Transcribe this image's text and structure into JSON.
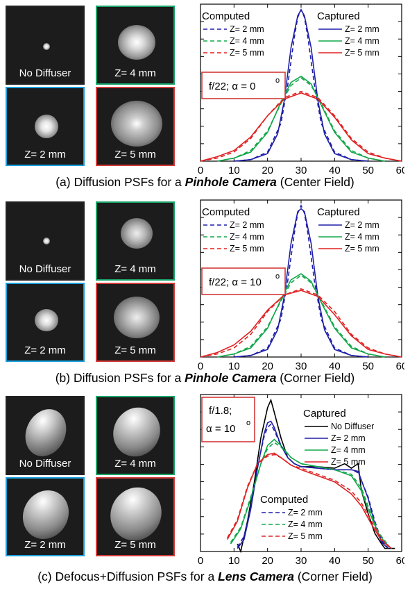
{
  "panels": [
    {
      "id": "a",
      "thumbs": [
        {
          "label": "No Diffuser",
          "color": "none",
          "spot": "tiny"
        },
        {
          "label": "Z= 4 mm",
          "color": "green",
          "spot": "medium"
        },
        {
          "label": "Z= 2 mm",
          "color": "blue",
          "spot": "small"
        },
        {
          "label": "Z= 5 mm",
          "color": "red",
          "spot": "large"
        }
      ],
      "caption": {
        "prefix": "(a) Diffusion PSFs for a ",
        "emph": "Pinhole Camera",
        "suffix": " (Center Field)"
      },
      "annotation": "f/22; α = 0",
      "annotation_sup": "o",
      "legend": {
        "computed_title": "Computed",
        "captured_title": "Captured",
        "computed": [
          "Z= 2 mm",
          "Z= 4 mm",
          "Z= 5 mm"
        ],
        "captured": [
          "Z= 2 mm",
          "Z= 4 mm",
          "Z= 5 mm"
        ]
      }
    },
    {
      "id": "b",
      "thumbs": [
        {
          "label": "No Diffuser",
          "color": "none",
          "spot": "tiny"
        },
        {
          "label": "Z= 4 mm",
          "color": "green",
          "spot": "medium"
        },
        {
          "label": "Z= 2 mm",
          "color": "blue",
          "spot": "small"
        },
        {
          "label": "Z= 5 mm",
          "color": "red",
          "spot": "large"
        }
      ],
      "caption": {
        "prefix": "(b) Diffusion PSFs for a ",
        "emph": "Pinhole Camera",
        "suffix": " (Corner Field)"
      },
      "annotation": "f/22; α = 10",
      "annotation_sup": "o",
      "legend": {
        "computed_title": "Computed",
        "captured_title": "Captured",
        "computed": [
          "Z= 2 mm",
          "Z= 4 mm",
          "Z= 5 mm"
        ],
        "captured": [
          "Z= 2 mm",
          "Z= 4 mm",
          "Z= 5 mm"
        ]
      }
    },
    {
      "id": "c",
      "thumbs": [
        {
          "label": "No Diffuser",
          "color": "none",
          "spot": "ellipse"
        },
        {
          "label": "Z= 4 mm",
          "color": "green",
          "spot": "ellipse"
        },
        {
          "label": "Z= 2 mm",
          "color": "blue",
          "spot": "ellipse"
        },
        {
          "label": "Z= 5 mm",
          "color": "red",
          "spot": "ellipse"
        }
      ],
      "caption": {
        "prefix": "(c) Defocus+Diffusion PSFs for a ",
        "emph": "Lens Camera",
        "suffix": " (Corner Field)"
      },
      "annotation_line1": "f/1.8;",
      "annotation": "α = 10",
      "annotation_sup": "o",
      "legend": {
        "computed_title": "Computed",
        "captured_title": "Captured",
        "computed": [
          "Z= 2 mm",
          "Z= 4 mm",
          "Z= 5 mm"
        ],
        "captured": [
          "No Diffuser",
          "Z= 2 mm",
          "Z= 4 mm",
          "Z= 5 mm"
        ]
      }
    }
  ],
  "colors": {
    "blue": "#1f1fa8",
    "green": "#12a84a",
    "red": "#e02020",
    "black": "#000000",
    "annotation_box": "#d23a3a"
  },
  "chart_data": [
    {
      "type": "line",
      "xlim": [
        0,
        60
      ],
      "xticks": [
        0,
        10,
        20,
        30,
        40,
        50,
        60
      ],
      "series": [
        {
          "name": "Z= 2 mm",
          "group": "Computed",
          "style": "dashed",
          "color": "blue",
          "x": [
            10,
            15,
            20,
            24,
            26,
            28,
            29,
            30,
            31,
            32,
            34,
            36,
            40,
            45,
            50
          ],
          "y": [
            0,
            0.01,
            0.06,
            0.25,
            0.5,
            0.82,
            0.95,
            1.0,
            0.95,
            0.82,
            0.5,
            0.25,
            0.06,
            0.01,
            0
          ]
        },
        {
          "name": "Z= 4 mm",
          "group": "Computed",
          "style": "dashed",
          "color": "green",
          "x": [
            5,
            10,
            15,
            20,
            24,
            27,
            30,
            33,
            36,
            40,
            45,
            50,
            55
          ],
          "y": [
            0,
            0.02,
            0.07,
            0.2,
            0.38,
            0.5,
            0.55,
            0.5,
            0.38,
            0.2,
            0.07,
            0.02,
            0
          ]
        },
        {
          "name": "Z= 5 mm",
          "group": "Computed",
          "style": "dashed",
          "color": "red",
          "x": [
            0,
            5,
            10,
            15,
            20,
            25,
            30,
            35,
            40,
            45,
            50,
            55,
            60
          ],
          "y": [
            0,
            0.02,
            0.06,
            0.15,
            0.3,
            0.42,
            0.46,
            0.42,
            0.3,
            0.15,
            0.06,
            0.02,
            0
          ]
        },
        {
          "name": "Z= 2 mm",
          "group": "Captured",
          "style": "solid",
          "color": "blue",
          "x": [
            10,
            15,
            20,
            23,
            25,
            27,
            29,
            30,
            31,
            33,
            35,
            37,
            40,
            45,
            50
          ],
          "y": [
            0,
            0.01,
            0.05,
            0.18,
            0.4,
            0.75,
            0.96,
            1.0,
            0.96,
            0.75,
            0.4,
            0.18,
            0.05,
            0.01,
            0
          ]
        },
        {
          "name": "Z= 4 mm",
          "group": "Captured",
          "style": "solid",
          "color": "green",
          "x": [
            5,
            10,
            15,
            20,
            24,
            27,
            30,
            33,
            36,
            40,
            45,
            50,
            55
          ],
          "y": [
            0,
            0.02,
            0.06,
            0.19,
            0.39,
            0.52,
            0.56,
            0.51,
            0.37,
            0.19,
            0.06,
            0.02,
            0
          ]
        },
        {
          "name": "Z= 5 mm",
          "group": "Captured",
          "style": "solid",
          "color": "red",
          "x": [
            0,
            5,
            10,
            15,
            20,
            25,
            30,
            35,
            40,
            45,
            50,
            55,
            60
          ],
          "y": [
            0,
            0.03,
            0.07,
            0.16,
            0.3,
            0.41,
            0.45,
            0.41,
            0.29,
            0.14,
            0.05,
            0.02,
            0
          ]
        }
      ]
    },
    {
      "type": "line",
      "xlim": [
        0,
        60
      ],
      "xticks": [
        0,
        10,
        20,
        30,
        40,
        50,
        60
      ],
      "series": [
        {
          "name": "Z= 2 mm",
          "group": "Computed",
          "style": "dashed",
          "color": "blue",
          "x": [
            10,
            15,
            20,
            24,
            26,
            28,
            29,
            30,
            31,
            32,
            34,
            36,
            40,
            45,
            50
          ],
          "y": [
            0,
            0.01,
            0.06,
            0.25,
            0.5,
            0.82,
            0.95,
            1.0,
            0.95,
            0.82,
            0.5,
            0.25,
            0.06,
            0.01,
            0
          ]
        },
        {
          "name": "Z= 4 mm",
          "group": "Computed",
          "style": "dashed",
          "color": "green",
          "x": [
            5,
            10,
            15,
            20,
            24,
            27,
            30,
            33,
            36,
            40,
            45,
            50,
            55
          ],
          "y": [
            0,
            0.02,
            0.07,
            0.2,
            0.37,
            0.49,
            0.54,
            0.49,
            0.37,
            0.2,
            0.07,
            0.02,
            0
          ]
        },
        {
          "name": "Z= 5 mm",
          "group": "Computed",
          "style": "dashed",
          "color": "red",
          "x": [
            0,
            5,
            10,
            15,
            20,
            25,
            30,
            35,
            40,
            45,
            50,
            55,
            60
          ],
          "y": [
            0,
            0.02,
            0.06,
            0.15,
            0.3,
            0.41,
            0.45,
            0.41,
            0.3,
            0.15,
            0.06,
            0.02,
            0
          ]
        },
        {
          "name": "Z= 2 mm",
          "group": "Captured",
          "style": "solid",
          "color": "blue",
          "x": [
            10,
            15,
            20,
            23,
            25,
            27,
            29,
            30,
            31,
            33,
            35,
            37,
            40,
            45,
            50
          ],
          "y": [
            0,
            0.01,
            0.05,
            0.18,
            0.4,
            0.75,
            0.96,
            0.98,
            0.96,
            0.75,
            0.4,
            0.18,
            0.05,
            0.01,
            0
          ]
        },
        {
          "name": "Z= 4 mm",
          "group": "Captured",
          "style": "solid",
          "color": "green",
          "x": [
            5,
            10,
            15,
            20,
            24,
            27,
            30,
            33,
            36,
            40,
            45,
            50,
            55
          ],
          "y": [
            0,
            0.02,
            0.06,
            0.19,
            0.38,
            0.51,
            0.55,
            0.5,
            0.36,
            0.19,
            0.06,
            0.02,
            0
          ]
        },
        {
          "name": "Z= 5 mm",
          "group": "Captured",
          "style": "solid",
          "color": "red",
          "x": [
            0,
            5,
            10,
            15,
            20,
            25,
            30,
            35,
            40,
            45,
            50,
            55,
            60
          ],
          "y": [
            0,
            0.03,
            0.08,
            0.17,
            0.31,
            0.41,
            0.44,
            0.4,
            0.28,
            0.14,
            0.05,
            0.02,
            0
          ]
        }
      ]
    },
    {
      "type": "line",
      "xlim": [
        0,
        60
      ],
      "xticks": [
        0,
        10,
        20,
        30,
        40,
        50,
        60
      ],
      "series": [
        {
          "name": "No Diffuser",
          "group": "Captured",
          "style": "solid",
          "color": "black",
          "x": [
            11,
            12,
            14,
            16,
            18,
            20,
            21,
            22,
            24,
            26,
            28,
            30,
            35,
            40,
            43,
            45,
            47,
            48,
            50,
            52,
            54,
            55,
            58
          ],
          "y": [
            0.05,
            0.0,
            0.2,
            0.45,
            0.75,
            0.95,
            1.0,
            0.92,
            0.75,
            0.62,
            0.58,
            0.56,
            0.56,
            0.55,
            0.58,
            0.55,
            0.58,
            0.4,
            0.25,
            0.12,
            0.05,
            0.02,
            0.02
          ]
        },
        {
          "name": "Z= 2 mm",
          "group": "Captured",
          "style": "solid",
          "color": "blue",
          "x": [
            11,
            13,
            15,
            17,
            19,
            20,
            21,
            22,
            24,
            26,
            28,
            30,
            35,
            40,
            45,
            47,
            50,
            52,
            54,
            56
          ],
          "y": [
            0.02,
            0.08,
            0.28,
            0.55,
            0.78,
            0.85,
            0.86,
            0.82,
            0.7,
            0.62,
            0.58,
            0.56,
            0.55,
            0.54,
            0.54,
            0.53,
            0.35,
            0.18,
            0.06,
            0.02
          ]
        },
        {
          "name": "Z= 4 mm",
          "group": "Captured",
          "style": "solid",
          "color": "green",
          "x": [
            9,
            12,
            15,
            18,
            20,
            22,
            24,
            27,
            30,
            35,
            40,
            45,
            48,
            50,
            53,
            56
          ],
          "y": [
            0.05,
            0.15,
            0.35,
            0.58,
            0.7,
            0.74,
            0.7,
            0.62,
            0.58,
            0.56,
            0.54,
            0.5,
            0.4,
            0.28,
            0.12,
            0.03
          ]
        },
        {
          "name": "Z= 5 mm",
          "group": "Captured",
          "style": "solid",
          "color": "red",
          "x": [
            8,
            11,
            14,
            17,
            20,
            22,
            24,
            27,
            30,
            35,
            40,
            45,
            48,
            51,
            54,
            57
          ],
          "y": [
            0.08,
            0.2,
            0.42,
            0.58,
            0.64,
            0.65,
            0.62,
            0.57,
            0.54,
            0.5,
            0.46,
            0.38,
            0.3,
            0.18,
            0.07,
            0.02
          ]
        },
        {
          "name": "Z= 2 mm",
          "group": "Computed",
          "style": "dashed",
          "color": "blue",
          "x": [
            11,
            13,
            15,
            17,
            19,
            20,
            21,
            22,
            24,
            26,
            28,
            30,
            35,
            40,
            45,
            47,
            50,
            52,
            54,
            56
          ],
          "y": [
            0.03,
            0.1,
            0.3,
            0.56,
            0.76,
            0.82,
            0.84,
            0.8,
            0.7,
            0.62,
            0.58,
            0.56,
            0.55,
            0.54,
            0.54,
            0.52,
            0.36,
            0.2,
            0.07,
            0.02
          ]
        },
        {
          "name": "Z= 4 mm",
          "group": "Computed",
          "style": "dashed",
          "color": "green",
          "x": [
            9,
            12,
            15,
            18,
            20,
            22,
            24,
            27,
            30,
            35,
            40,
            45,
            48,
            50,
            53,
            56
          ],
          "y": [
            0.06,
            0.16,
            0.36,
            0.58,
            0.68,
            0.72,
            0.69,
            0.62,
            0.58,
            0.56,
            0.54,
            0.51,
            0.42,
            0.3,
            0.13,
            0.04
          ]
        },
        {
          "name": "Z= 5 mm",
          "group": "Computed",
          "style": "dashed",
          "color": "red",
          "x": [
            8,
            11,
            14,
            17,
            20,
            22,
            24,
            27,
            30,
            35,
            40,
            45,
            48,
            51,
            54,
            57
          ],
          "y": [
            0.09,
            0.21,
            0.43,
            0.58,
            0.63,
            0.64,
            0.62,
            0.57,
            0.55,
            0.51,
            0.47,
            0.4,
            0.32,
            0.2,
            0.08,
            0.02
          ]
        }
      ]
    }
  ]
}
